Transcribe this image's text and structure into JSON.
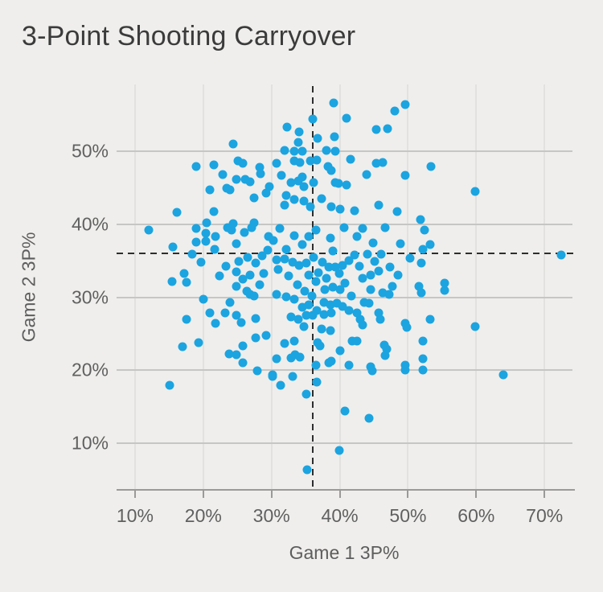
{
  "chart_data": {
    "type": "scatter",
    "title": "3-Point Shooting Carryover",
    "xlabel": "Game 1 3P%",
    "ylabel": "Game 2 3P%",
    "xlim": [
      7.3,
      74.1
    ],
    "ylim": [
      3.7,
      59.2
    ],
    "x_ticks": [
      10,
      20,
      30,
      40,
      50,
      60,
      70
    ],
    "y_ticks": [
      10,
      20,
      30,
      40,
      50
    ],
    "tick_suffix": "%",
    "grid": "on",
    "legend": "none",
    "point_color": "#1ba4e0",
    "reference_lines": {
      "vertical_x": 36,
      "horizontal_y": 36,
      "style": "dashed",
      "color": "#2d2d2d"
    },
    "points": [
      [
        24.4,
        51.0
      ],
      [
        19.0,
        48.0
      ],
      [
        21.6,
        48.2
      ],
      [
        25.1,
        48.7
      ],
      [
        25.8,
        48.4
      ],
      [
        22.9,
        46.8
      ],
      [
        24.8,
        46.2
      ],
      [
        26.2,
        46.2
      ],
      [
        26.9,
        45.9
      ],
      [
        28.3,
        47.8
      ],
      [
        28.4,
        47.0
      ],
      [
        21.0,
        44.7
      ],
      [
        23.4,
        45.0
      ],
      [
        23.9,
        44.8
      ],
      [
        29.7,
        45.2
      ],
      [
        27.5,
        43.6
      ],
      [
        29.2,
        44.3
      ],
      [
        16.1,
        41.7
      ],
      [
        21.5,
        41.8
      ],
      [
        20.5,
        40.2
      ],
      [
        24.4,
        40.1
      ],
      [
        27.4,
        40.2
      ],
      [
        39.1,
        56.7
      ],
      [
        49.6,
        56.4
      ],
      [
        48.1,
        55.6
      ],
      [
        36.0,
        54.5
      ],
      [
        41.0,
        54.6
      ],
      [
        32.3,
        53.3
      ],
      [
        45.3,
        53.0
      ],
      [
        47.0,
        53.1
      ],
      [
        34.1,
        52.7
      ],
      [
        33.9,
        51.3
      ],
      [
        36.8,
        51.8
      ],
      [
        39.2,
        52.0
      ],
      [
        31.9,
        50.1
      ],
      [
        33.3,
        50.0
      ],
      [
        34.5,
        50.0
      ],
      [
        38.1,
        50.1
      ],
      [
        39.3,
        50.0
      ],
      [
        30.7,
        48.4
      ],
      [
        33.3,
        48.7
      ],
      [
        34.2,
        48.5
      ],
      [
        35.7,
        48.7
      ],
      [
        36.6,
        48.8
      ],
      [
        41.6,
        48.9
      ],
      [
        45.3,
        48.4
      ],
      [
        46.3,
        48.5
      ],
      [
        31.5,
        46.7
      ],
      [
        34.5,
        46.5
      ],
      [
        38.3,
        47.9
      ],
      [
        38.8,
        47.4
      ],
      [
        39.8,
        45.6
      ],
      [
        32.9,
        45.7
      ],
      [
        33.9,
        46.0
      ],
      [
        34.7,
        45.2
      ],
      [
        36.2,
        45.7
      ],
      [
        39.4,
        45.7
      ],
      [
        41.0,
        45.4
      ],
      [
        43.9,
        46.8
      ],
      [
        49.6,
        46.7
      ],
      [
        32.1,
        44.0
      ],
      [
        33.3,
        43.4
      ],
      [
        34.7,
        43.2
      ],
      [
        31.9,
        42.7
      ],
      [
        35.7,
        42.4
      ],
      [
        37.4,
        43.5
      ],
      [
        38.8,
        42.4
      ],
      [
        40.0,
        42.1
      ],
      [
        42.2,
        41.9
      ],
      [
        45.7,
        42.7
      ],
      [
        48.4,
        41.8
      ],
      [
        51.8,
        40.7
      ],
      [
        53.4,
        48.0
      ],
      [
        59.8,
        44.5
      ],
      [
        12.0,
        39.2
      ],
      [
        15.6,
        36.9
      ],
      [
        19.0,
        39.4
      ],
      [
        20.4,
        38.8
      ],
      [
        19.0,
        37.6
      ],
      [
        20.4,
        37.7
      ],
      [
        21.8,
        38.3
      ],
      [
        23.6,
        39.6
      ],
      [
        24.2,
        39.2
      ],
      [
        24.8,
        37.4
      ],
      [
        26.0,
        38.9
      ],
      [
        27.1,
        39.6
      ],
      [
        29.6,
        38.3
      ],
      [
        21.7,
        36.6
      ],
      [
        17.2,
        33.3
      ],
      [
        15.4,
        32.2
      ],
      [
        17.6,
        32.1
      ],
      [
        24.8,
        33.5
      ],
      [
        26.8,
        33.1
      ],
      [
        28.9,
        33.3
      ],
      [
        25.8,
        32.5
      ],
      [
        24.8,
        31.5
      ],
      [
        26.4,
        30.8
      ],
      [
        26.8,
        30.4
      ],
      [
        27.4,
        30.2
      ],
      [
        28.3,
        31.7
      ],
      [
        20.0,
        29.7
      ],
      [
        23.9,
        29.3
      ],
      [
        17.6,
        27.0
      ],
      [
        21.0,
        27.9
      ],
      [
        21.8,
        26.4
      ],
      [
        23.2,
        27.9
      ],
      [
        24.8,
        27.5
      ],
      [
        25.6,
        26.5
      ],
      [
        27.7,
        27.1
      ],
      [
        29.2,
        24.8
      ],
      [
        17.0,
        23.2
      ],
      [
        19.3,
        23.8
      ],
      [
        23.8,
        22.2
      ],
      [
        24.8,
        22.1
      ],
      [
        25.8,
        23.3
      ],
      [
        27.7,
        24.4
      ],
      [
        31.2,
        39.4
      ],
      [
        33.3,
        38.5
      ],
      [
        35.4,
        38.3
      ],
      [
        36.5,
        39.2
      ],
      [
        38.6,
        38.1
      ],
      [
        40.6,
        39.6
      ],
      [
        43.3,
        39.4
      ],
      [
        46.6,
        39.6
      ],
      [
        52.4,
        39.2
      ],
      [
        34.5,
        37.2
      ],
      [
        32.1,
        36.6
      ],
      [
        42.5,
        38.3
      ],
      [
        44.9,
        37.5
      ],
      [
        52.2,
        36.6
      ],
      [
        30.7,
        35.2
      ],
      [
        31.9,
        35.3
      ],
      [
        33.1,
        34.8
      ],
      [
        34.1,
        34.4
      ],
      [
        35.1,
        34.7
      ],
      [
        36.2,
        35.5
      ],
      [
        38.4,
        34.2
      ],
      [
        39.4,
        34.1
      ],
      [
        40.4,
        34.4
      ],
      [
        41.3,
        35.0
      ],
      [
        42.2,
        35.8
      ],
      [
        44.5,
        33.1
      ],
      [
        43.3,
        32.6
      ],
      [
        45.7,
        33.6
      ],
      [
        35.4,
        33.1
      ],
      [
        36.5,
        32.2
      ],
      [
        37.8,
        31.1
      ],
      [
        39.0,
        31.4
      ],
      [
        40.1,
        31.1
      ],
      [
        44.5,
        31.1
      ],
      [
        47.7,
        31.5
      ],
      [
        52.0,
        34.7
      ],
      [
        51.6,
        31.5
      ],
      [
        30.7,
        30.4
      ],
      [
        32.1,
        30.1
      ],
      [
        33.3,
        29.7
      ],
      [
        34.5,
        28.6
      ],
      [
        35.4,
        29.0
      ],
      [
        36.6,
        28.2
      ],
      [
        37.7,
        29.3
      ],
      [
        38.6,
        29.0
      ],
      [
        39.6,
        29.2
      ],
      [
        40.4,
        28.7
      ],
      [
        41.3,
        28.2
      ],
      [
        42.5,
        27.9
      ],
      [
        43.6,
        29.3
      ],
      [
        44.3,
        29.2
      ],
      [
        46.3,
        30.6
      ],
      [
        47.2,
        30.4
      ],
      [
        52.0,
        30.6
      ],
      [
        32.9,
        27.3
      ],
      [
        33.9,
        27.0
      ],
      [
        35.1,
        27.5
      ],
      [
        36.0,
        27.5
      ],
      [
        37.7,
        27.6
      ],
      [
        38.8,
        27.9
      ],
      [
        43.0,
        27.0
      ],
      [
        43.3,
        26.2
      ],
      [
        45.7,
        27.9
      ],
      [
        45.9,
        27.0
      ],
      [
        49.6,
        26.4
      ],
      [
        49.8,
        25.9
      ],
      [
        34.7,
        26.0
      ],
      [
        37.4,
        25.7
      ],
      [
        38.6,
        25.4
      ],
      [
        36.8,
        23.8
      ],
      [
        37.1,
        23.3
      ],
      [
        41.8,
        24.0
      ],
      [
        46.5,
        23.5
      ],
      [
        46.9,
        22.9
      ],
      [
        33.3,
        24.0
      ],
      [
        31.9,
        23.7
      ],
      [
        30.7,
        21.6
      ],
      [
        33.5,
        22.1
      ],
      [
        38.4,
        21.0
      ],
      [
        40.0,
        22.7
      ],
      [
        42.5,
        24.0
      ],
      [
        44.5,
        20.5
      ],
      [
        49.6,
        20.7
      ],
      [
        52.2,
        21.6
      ],
      [
        52.2,
        24.0
      ],
      [
        53.2,
        37.2
      ],
      [
        72.4,
        35.8
      ],
      [
        55.4,
        31.9
      ],
      [
        55.4,
        30.9
      ],
      [
        53.2,
        27.0
      ],
      [
        59.8,
        26.0
      ],
      [
        25.8,
        21.0
      ],
      [
        27.9,
        19.9
      ],
      [
        30.1,
        19.2
      ],
      [
        15.1,
        17.9
      ],
      [
        32.9,
        21.7
      ],
      [
        34.2,
        21.8
      ],
      [
        36.5,
        20.7
      ],
      [
        38.8,
        21.2
      ],
      [
        41.3,
        20.7
      ],
      [
        46.6,
        22.0
      ],
      [
        44.8,
        19.9
      ],
      [
        49.6,
        20.0
      ],
      [
        52.2,
        20.0
      ],
      [
        30.2,
        19.4
      ],
      [
        33.1,
        19.2
      ],
      [
        31.3,
        17.9
      ],
      [
        36.6,
        18.4
      ],
      [
        35.1,
        16.7
      ],
      [
        40.7,
        14.4
      ],
      [
        44.3,
        13.4
      ],
      [
        39.9,
        9.0
      ],
      [
        35.2,
        6.3
      ],
      [
        64.0,
        19.4
      ],
      [
        29.5,
        36.5
      ],
      [
        30.3,
        37.8
      ],
      [
        31.0,
        33.8
      ],
      [
        32.5,
        32.9
      ],
      [
        33.8,
        31.7
      ],
      [
        34.9,
        30.8
      ],
      [
        35.9,
        30.2
      ],
      [
        36.9,
        33.4
      ],
      [
        37.5,
        34.8
      ],
      [
        38.1,
        32.6
      ],
      [
        39.0,
        36.4
      ],
      [
        39.9,
        33.3
      ],
      [
        40.8,
        31.9
      ],
      [
        41.7,
        30.2
      ],
      [
        42.9,
        34.3
      ],
      [
        44.0,
        35.9
      ],
      [
        45.1,
        34.9
      ],
      [
        46.1,
        35.9
      ],
      [
        47.4,
        34.2
      ],
      [
        48.5,
        33.0
      ],
      [
        48.9,
        37.4
      ],
      [
        50.3,
        35.4
      ],
      [
        28.6,
        35.7
      ],
      [
        27.7,
        34.7
      ],
      [
        26.5,
        35.5
      ],
      [
        25.2,
        34.9
      ],
      [
        23.3,
        34.3
      ],
      [
        22.4,
        32.9
      ],
      [
        19.7,
        34.8
      ],
      [
        18.4,
        35.9
      ]
    ]
  },
  "colors": {
    "background": "#efeeec",
    "title_text": "#3b3b3b",
    "tick_text": "#606060",
    "grid_major": "#c6c6c4",
    "grid_minor": "#e2e1df",
    "axis_line": "#9a9a98",
    "point": "#1ba4e0",
    "reference_line": "#2d2d2d"
  }
}
